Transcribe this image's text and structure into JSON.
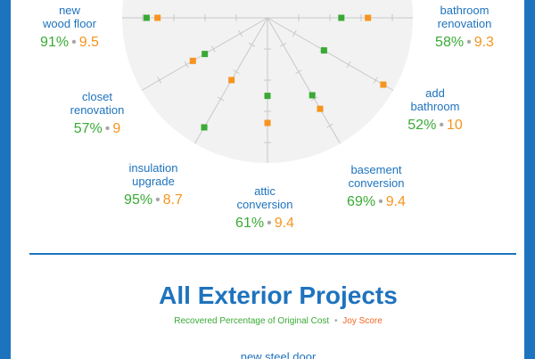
{
  "colors": {
    "frame": "#1e73be",
    "title": "#1e73be",
    "percent": "#3aaa35",
    "joy": "#f7941d",
    "disc": "#f2f2f2",
    "spoke": "#c8c8c8"
  },
  "chart_data": {
    "type": "radar",
    "title": "",
    "series": [
      {
        "name": "Recovered Percentage of Original Cost",
        "unit": "%",
        "max": 100,
        "color": "#3aaa35"
      },
      {
        "name": "Joy Score",
        "unit": "",
        "max": 10,
        "color": "#f7941d"
      }
    ],
    "categories": [
      {
        "label_lines": [
          "new",
          "wood floor"
        ],
        "percent": 91,
        "percent_text": "91%",
        "joy": 9.5,
        "joy_text": "9.5"
      },
      {
        "label_lines": [
          "bathroom",
          "renovation"
        ],
        "percent": 58,
        "percent_text": "58%",
        "joy": 9.3,
        "joy_text": "9.3"
      },
      {
        "label_lines": [
          "add",
          "bathroom"
        ],
        "percent": 52,
        "percent_text": "52%",
        "joy": 10,
        "joy_text": "10"
      },
      {
        "label_lines": [
          "basement",
          "conversion"
        ],
        "percent": 69,
        "percent_text": "69%",
        "joy": 9.4,
        "joy_text": "9.4"
      },
      {
        "label_lines": [
          "attic",
          "conversion"
        ],
        "percent": 61,
        "percent_text": "61%",
        "joy": 9.4,
        "joy_text": "9.4"
      },
      {
        "label_lines": [
          "insulation",
          "upgrade"
        ],
        "percent": 95,
        "percent_text": "95%",
        "joy": 8.7,
        "joy_text": "8.7"
      },
      {
        "label_lines": [
          "closet",
          "renovation"
        ],
        "percent": 57,
        "percent_text": "57%",
        "joy": 9,
        "joy_text": "9"
      }
    ],
    "separator": "•"
  },
  "next_section": {
    "title": "All Exterior Projects",
    "legend_percent": "Recovered Percentage of Original Cost",
    "legend_joy": "Joy Score",
    "legend_separator": "•",
    "first_label": "new steel door"
  }
}
